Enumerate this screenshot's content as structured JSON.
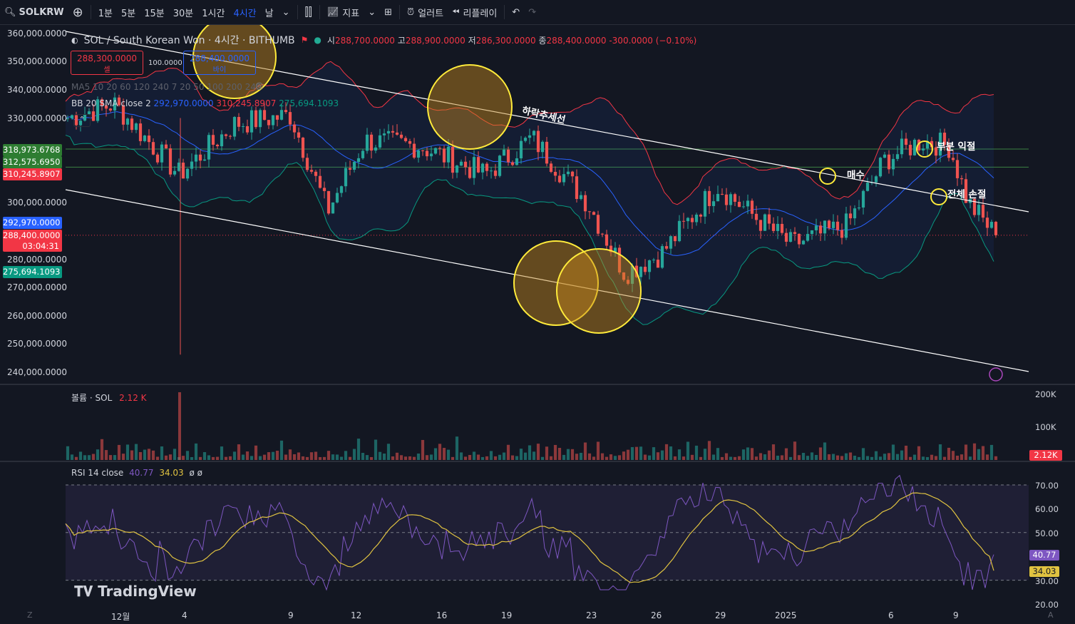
{
  "toolbar": {
    "symbol": "SOLKRW",
    "timeframes": [
      "1분",
      "5분",
      "15분",
      "30분",
      "1시간",
      "4시간",
      "날"
    ],
    "active_timeframe": "4시간",
    "indicators_label": "지표",
    "alert_label": "얼러트",
    "replay_label": "리플레이"
  },
  "header": {
    "title": "SOL / South Korean Won · 4시간 · BITHUMB",
    "open_label": "시",
    "open": "288,700.0000",
    "high_label": "고",
    "high": "288,900.0000",
    "low_label": "저",
    "low": "286,300.0000",
    "close_label": "종",
    "close": "288,400.0000",
    "change": "-300.0000 (−0.10%)"
  },
  "trade": {
    "sell_price": "288,300.0000",
    "sell_label": "셀",
    "spread": "100.0000",
    "buy_price": "288,400.0000",
    "buy_label": "바이"
  },
  "indicators": {
    "ma_legend": "MA5 10 20 60 120 240 7 20 50 100 200 240",
    "bb_label": "BB 20 SMA close 2",
    "bb_basis": "292,970.0000",
    "bb_upper": "310,245.8907",
    "bb_lower": "275,694.1093"
  },
  "price_axis": {
    "ticks": [
      "360,000.0000",
      "350,000.0000",
      "340,000.0000",
      "330,000.0000",
      "300,000.0000",
      "280,000.0000",
      "270,000.0000",
      "260,000.0000",
      "250,000.0000",
      "240,000.0000"
    ],
    "tags": {
      "level1": "318,973.6768",
      "level2": "312,575.6950",
      "bb_upper": "310,245.8907",
      "bb_basis": "292,970.0000",
      "last": "288,400.0000",
      "countdown": "03:04:31",
      "bb_lower": "275,694.1093"
    }
  },
  "volume": {
    "label": "볼륨 · SOL",
    "value": "2.12 K",
    "ticks": [
      "200K",
      "100K"
    ],
    "tag": "2.12K"
  },
  "rsi": {
    "label": "RSI 14 close",
    "value": "40.77",
    "ma_value": "34.03",
    "extra": "ø ø",
    "ticks": [
      "70.00",
      "60.00",
      "50.00",
      "30.00",
      "20.00"
    ],
    "tag_rsi": "40.77",
    "tag_ma": "34.03"
  },
  "time_axis": [
    "12월",
    "4",
    "9",
    "12",
    "16",
    "19",
    "23",
    "26",
    "29",
    "2025",
    "6",
    "9"
  ],
  "annotations": {
    "trendline": "하락추세선",
    "buy": "매수",
    "partial_profit": "부분 익절",
    "full_stop": "전체 손절"
  },
  "brand": "TradingView",
  "colors": {
    "background": "#131722",
    "up": "#26a69a",
    "down": "#ef5350",
    "bb_basis": "#2962ff",
    "bb_upper": "#f23645",
    "bb_lower": "#089981",
    "rsi_line": "#7e57c2",
    "rsi_ma": "#e0c341",
    "circle": "#ffeb3b"
  },
  "chart_data": {
    "type": "candlestick",
    "title": "SOL / South Korean Won · 4시간 · BITHUMB",
    "ylim": [
      240000,
      360000
    ],
    "levels": [
      318973.6768,
      312575.695
    ],
    "last_close": 288400,
    "bb": {
      "basis": 292970,
      "upper": 310245.8907,
      "lower": 275694.1093
    },
    "rsi": {
      "value": 40.77,
      "ma": 34.03,
      "levels": [
        70,
        50,
        30
      ]
    }
  }
}
